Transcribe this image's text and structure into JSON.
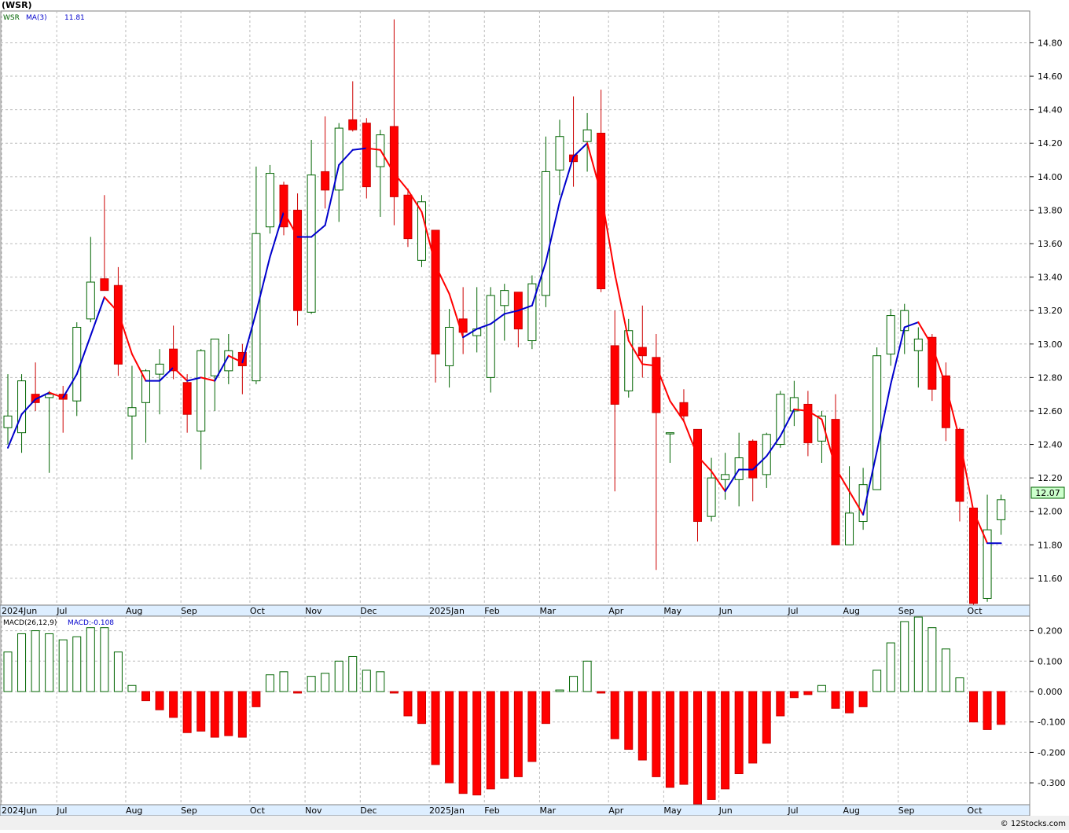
{
  "header": {
    "title": "(WSR)"
  },
  "legend": {
    "symbol": "WSR",
    "ma_label": "MA(3)",
    "ma_value": "11.81",
    "macd_label": "MACD(26,12,9)",
    "macd_value": "MACD:-0.108"
  },
  "watermark": "© 12Stocks.com",
  "last_price_label": "12.07",
  "colors": {
    "up": "#006400",
    "down": "#ff0000",
    "ma_up": "#0000cc",
    "ma_down": "#ff0000",
    "grid": "#bbbbbb",
    "price_tag_bg": "#ccffcc"
  },
  "chart_data": [
    {
      "type": "candlestick",
      "title": "(WSR)",
      "ylim": [
        11.44,
        14.99
      ],
      "price_ticks": [
        "14.80",
        "14.60",
        "14.40",
        "14.20",
        "14.00",
        "13.80",
        "13.60",
        "13.40",
        "13.20",
        "13.00",
        "12.80",
        "12.60",
        "12.40",
        "12.20",
        "12.00",
        "11.80",
        "11.60"
      ],
      "month_labels": [
        {
          "label": "2024Jun",
          "index": 0
        },
        {
          "label": "Jul",
          "index": 4
        },
        {
          "label": "Aug",
          "index": 9
        },
        {
          "label": "Sep",
          "index": 13
        },
        {
          "label": "Oct",
          "index": 18
        },
        {
          "label": "Nov",
          "index": 22
        },
        {
          "label": "Dec",
          "index": 26
        },
        {
          "label": "2025Jan",
          "index": 31
        },
        {
          "label": "Feb",
          "index": 35
        },
        {
          "label": "Mar",
          "index": 39
        },
        {
          "label": "Apr",
          "index": 44
        },
        {
          "label": "May",
          "index": 48
        },
        {
          "label": "Jun",
          "index": 52
        },
        {
          "label": "Jul",
          "index": 57
        },
        {
          "label": "Aug",
          "index": 61
        },
        {
          "label": "Sep",
          "index": 65
        },
        {
          "label": "Oct",
          "index": 70
        }
      ],
      "candles": [
        {
          "o": 12.5,
          "h": 12.82,
          "l": 12.4,
          "c": 12.57
        },
        {
          "o": 12.47,
          "h": 12.82,
          "l": 12.35,
          "c": 12.78
        },
        {
          "o": 12.7,
          "h": 12.89,
          "l": 12.6,
          "c": 12.65
        },
        {
          "o": 12.68,
          "h": 12.72,
          "l": 12.23,
          "c": 12.7
        },
        {
          "o": 12.7,
          "h": 12.75,
          "l": 12.47,
          "c": 12.67
        },
        {
          "o": 12.66,
          "h": 13.13,
          "l": 12.57,
          "c": 13.1
        },
        {
          "o": 13.15,
          "h": 13.64,
          "l": 13.13,
          "c": 13.37
        },
        {
          "o": 13.39,
          "h": 13.89,
          "l": 13.32,
          "c": 13.32
        },
        {
          "o": 13.35,
          "h": 13.46,
          "l": 12.81,
          "c": 12.88
        },
        {
          "o": 12.57,
          "h": 12.87,
          "l": 12.31,
          "c": 12.62
        },
        {
          "o": 12.65,
          "h": 12.85,
          "l": 12.41,
          "c": 12.84
        },
        {
          "o": 12.82,
          "h": 12.97,
          "l": 12.58,
          "c": 12.88
        },
        {
          "o": 12.97,
          "h": 13.11,
          "l": 12.79,
          "c": 12.84
        },
        {
          "o": 12.77,
          "h": 12.82,
          "l": 12.47,
          "c": 12.58
        },
        {
          "o": 12.48,
          "h": 12.97,
          "l": 12.25,
          "c": 12.96
        },
        {
          "o": 12.81,
          "h": 13.03,
          "l": 12.6,
          "c": 13.03
        },
        {
          "o": 12.84,
          "h": 13.06,
          "l": 12.76,
          "c": 12.96
        },
        {
          "o": 12.95,
          "h": 13.0,
          "l": 12.7,
          "c": 12.87
        },
        {
          "o": 12.78,
          "h": 14.06,
          "l": 12.76,
          "c": 13.66
        },
        {
          "o": 13.7,
          "h": 14.07,
          "l": 13.66,
          "c": 14.02
        },
        {
          "o": 13.95,
          "h": 13.97,
          "l": 13.65,
          "c": 13.7
        },
        {
          "o": 13.8,
          "h": 13.9,
          "l": 13.11,
          "c": 13.2
        },
        {
          "o": 13.19,
          "h": 14.22,
          "l": 13.18,
          "c": 14.01
        },
        {
          "o": 14.03,
          "h": 14.36,
          "l": 13.81,
          "c": 13.92
        },
        {
          "o": 13.92,
          "h": 14.32,
          "l": 13.73,
          "c": 14.29
        },
        {
          "o": 14.34,
          "h": 14.57,
          "l": 14.27,
          "c": 14.28
        },
        {
          "o": 14.32,
          "h": 14.35,
          "l": 13.87,
          "c": 13.94
        },
        {
          "o": 14.06,
          "h": 14.28,
          "l": 13.76,
          "c": 14.25
        },
        {
          "o": 14.3,
          "h": 14.94,
          "l": 13.71,
          "c": 13.88
        },
        {
          "o": 13.89,
          "h": 13.93,
          "l": 13.58,
          "c": 13.63
        },
        {
          "o": 13.5,
          "h": 13.89,
          "l": 13.46,
          "c": 13.85
        },
        {
          "o": 13.68,
          "h": 13.68,
          "l": 12.77,
          "c": 12.94
        },
        {
          "o": 12.87,
          "h": 13.21,
          "l": 12.74,
          "c": 13.1
        },
        {
          "o": 13.15,
          "h": 13.34,
          "l": 12.94,
          "c": 13.07
        },
        {
          "o": 13.05,
          "h": 13.34,
          "l": 12.95,
          "c": 13.09
        },
        {
          "o": 12.8,
          "h": 13.34,
          "l": 12.71,
          "c": 13.29
        },
        {
          "o": 13.23,
          "h": 13.36,
          "l": 13.02,
          "c": 13.32
        },
        {
          "o": 13.31,
          "h": 13.31,
          "l": 12.98,
          "c": 13.09
        },
        {
          "o": 13.02,
          "h": 13.41,
          "l": 12.97,
          "c": 13.36
        },
        {
          "o": 13.29,
          "h": 14.24,
          "l": 13.22,
          "c": 14.03
        },
        {
          "o": 14.04,
          "h": 14.34,
          "l": 13.89,
          "c": 14.24
        },
        {
          "o": 14.13,
          "h": 14.48,
          "l": 13.94,
          "c": 14.09
        },
        {
          "o": 14.21,
          "h": 14.38,
          "l": 14.03,
          "c": 14.28
        },
        {
          "o": 14.26,
          "h": 14.52,
          "l": 13.31,
          "c": 13.33
        },
        {
          "o": 12.99,
          "h": 13.2,
          "l": 12.12,
          "c": 12.64
        },
        {
          "o": 12.72,
          "h": 13.15,
          "l": 12.68,
          "c": 13.08
        },
        {
          "o": 12.98,
          "h": 13.23,
          "l": 12.8,
          "c": 12.93
        },
        {
          "o": 12.92,
          "h": 13.06,
          "l": 11.65,
          "c": 12.59
        },
        {
          "o": 12.47,
          "h": 12.47,
          "l": 12.29,
          "c": 12.47
        },
        {
          "o": 12.65,
          "h": 12.73,
          "l": 12.54,
          "c": 12.57
        },
        {
          "o": 12.49,
          "h": 12.49,
          "l": 11.82,
          "c": 11.94
        },
        {
          "o": 11.97,
          "h": 12.32,
          "l": 11.94,
          "c": 12.2
        },
        {
          "o": 12.19,
          "h": 12.35,
          "l": 12.07,
          "c": 12.22
        },
        {
          "o": 12.19,
          "h": 12.47,
          "l": 12.03,
          "c": 12.32
        },
        {
          "o": 12.42,
          "h": 12.43,
          "l": 12.06,
          "c": 12.2
        },
        {
          "o": 12.22,
          "h": 12.47,
          "l": 12.14,
          "c": 12.46
        },
        {
          "o": 12.4,
          "h": 12.72,
          "l": 12.38,
          "c": 12.7
        },
        {
          "o": 12.6,
          "h": 12.78,
          "l": 12.51,
          "c": 12.68
        },
        {
          "o": 12.64,
          "h": 12.72,
          "l": 12.33,
          "c": 12.41
        },
        {
          "o": 12.42,
          "h": 12.6,
          "l": 12.29,
          "c": 12.57
        },
        {
          "o": 12.55,
          "h": 12.7,
          "l": 11.8,
          "c": 11.8
        },
        {
          "o": 11.8,
          "h": 12.27,
          "l": 11.8,
          "c": 11.99
        },
        {
          "o": 11.94,
          "h": 12.26,
          "l": 11.89,
          "c": 12.16
        },
        {
          "o": 12.13,
          "h": 12.98,
          "l": 12.13,
          "c": 12.93
        },
        {
          "o": 12.94,
          "h": 13.21,
          "l": 12.87,
          "c": 13.17
        },
        {
          "o": 13.08,
          "h": 13.24,
          "l": 12.94,
          "c": 13.2
        },
        {
          "o": 12.96,
          "h": 13.1,
          "l": 12.74,
          "c": 13.03
        },
        {
          "o": 13.04,
          "h": 13.06,
          "l": 12.66,
          "c": 12.73
        },
        {
          "o": 12.81,
          "h": 12.89,
          "l": 12.42,
          "c": 12.5
        },
        {
          "o": 12.49,
          "h": 12.5,
          "l": 11.94,
          "c": 12.06
        },
        {
          "o": 12.02,
          "h": 12.02,
          "l": 11.44,
          "c": 11.45
        },
        {
          "o": 11.48,
          "h": 12.1,
          "l": 11.46,
          "c": 11.89
        },
        {
          "o": 11.95,
          "h": 12.1,
          "l": 11.86,
          "c": 12.07
        }
      ],
      "ma3": [
        12.38,
        12.58,
        12.67,
        12.71,
        12.68,
        12.82,
        13.05,
        13.28,
        13.19,
        12.94,
        12.78,
        12.78,
        12.86,
        12.78,
        12.8,
        12.78,
        12.93,
        12.89,
        13.19,
        13.52,
        13.79,
        13.64,
        13.64,
        13.71,
        14.07,
        14.16,
        14.17,
        14.16,
        14.02,
        13.92,
        13.79,
        13.47,
        13.3,
        13.04,
        13.09,
        13.12,
        13.18,
        13.2,
        13.23,
        13.49,
        13.85,
        14.12,
        14.2,
        13.9,
        13.42,
        13.02,
        12.88,
        12.87,
        12.66,
        12.54,
        12.33,
        12.24,
        12.12,
        12.25,
        12.25,
        12.33,
        12.45,
        12.61,
        12.6,
        12.55,
        12.26,
        12.12,
        11.98,
        12.36,
        12.76,
        13.1,
        13.13,
        12.99,
        12.75,
        12.43,
        12.0,
        11.81,
        11.81
      ]
    },
    {
      "type": "bar",
      "title": "MACD(26,12,9)",
      "ylim": [
        -0.372,
        0.248
      ],
      "ticks": [
        "0.200",
        "0.100",
        "0.000",
        "-0.100",
        "-0.200",
        "-0.300"
      ],
      "values": [
        0.13,
        0.19,
        0.2,
        0.19,
        0.17,
        0.18,
        0.21,
        0.21,
        0.13,
        0.02,
        -0.03,
        -0.06,
        -0.085,
        -0.135,
        -0.13,
        -0.15,
        -0.145,
        -0.15,
        -0.05,
        0.055,
        0.065,
        -0.005,
        0.05,
        0.06,
        0.1,
        0.115,
        0.07,
        0.065,
        -0.005,
        -0.08,
        -0.105,
        -0.24,
        -0.3,
        -0.335,
        -0.34,
        -0.32,
        -0.285,
        -0.28,
        -0.23,
        -0.105,
        0.005,
        0.05,
        0.1,
        -0.005,
        -0.155,
        -0.19,
        -0.225,
        -0.28,
        -0.315,
        -0.305,
        -0.37,
        -0.355,
        -0.32,
        -0.27,
        -0.235,
        -0.17,
        -0.08,
        -0.02,
        -0.01,
        0.02,
        -0.055,
        -0.07,
        -0.05,
        0.07,
        0.16,
        0.23,
        0.245,
        0.21,
        0.14,
        0.045,
        -0.1,
        -0.125,
        -0.108
      ]
    }
  ]
}
